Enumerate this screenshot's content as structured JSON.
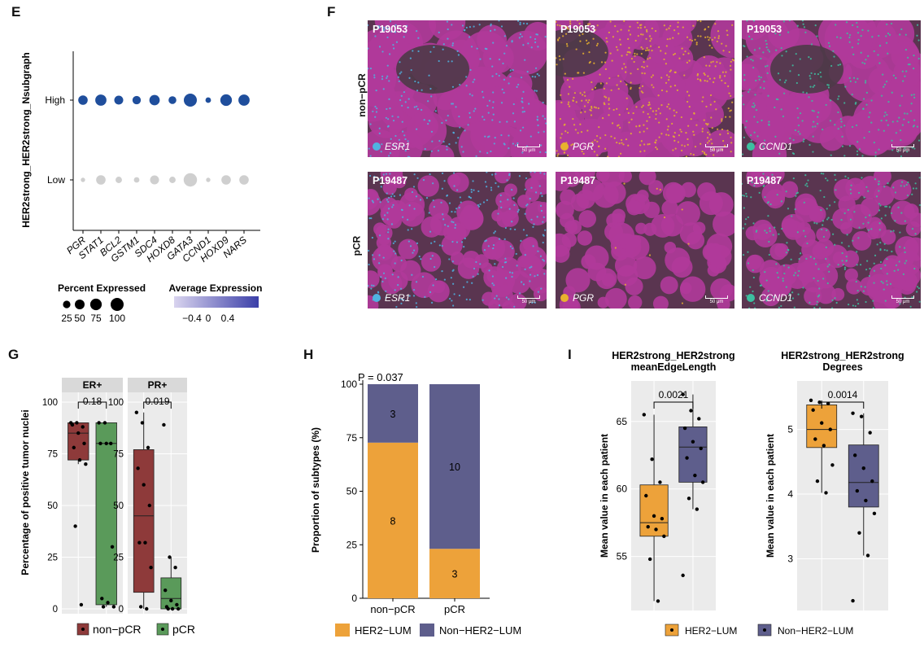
{
  "panels": {
    "E": "E",
    "F": "F",
    "G": "G",
    "H": "H",
    "I": "I"
  },
  "colors": {
    "nonpcr_red": "#8e3a3a",
    "pcr_green": "#5a9a5a",
    "her2lum_orange": "#eda23a",
    "nonher2_purple": "#5e5e8c",
    "dot_blue": "#1f4e9c",
    "dot_grey": "#cfcfcf",
    "esr1": "#4fb3e0",
    "pgr": "#e8b22e",
    "ccnd1": "#3dbfa0",
    "tissue_magenta": "#b03a9a"
  },
  "E": {
    "ylabel": "HER2strong_HER2strong_Nsubgraph",
    "legend_pct_title": "Percent Expressed",
    "legend_avg_title": "Average Expression",
    "legend_pct_labels": [
      "25",
      "50",
      "75",
      "100"
    ],
    "legend_avg_labels": [
      "−0.4",
      "0",
      "0.4"
    ]
  },
  "F": {
    "rows": [
      "non−pCR",
      "pCR"
    ],
    "tiles": [
      {
        "sample": "P19053",
        "gene": "ESR1",
        "scale": "50 μm"
      },
      {
        "sample": "P19053",
        "gene": "PGR",
        "scale": "50 μm"
      },
      {
        "sample": "P19053",
        "gene": "CCND1",
        "scale": "50 μm"
      },
      {
        "sample": "P19487",
        "gene": "ESR1",
        "scale": "50 μm"
      },
      {
        "sample": "P19487",
        "gene": "PGR",
        "scale": "50 μm"
      },
      {
        "sample": "P19487",
        "gene": "CCND1",
        "scale": "50 μm"
      }
    ]
  },
  "chart_data": [
    {
      "id": "E",
      "type": "scatter",
      "title": "",
      "xlabel": "",
      "ylabel": "HER2strong_HER2strong_Nsubgraph",
      "categories": [
        "PGR",
        "STAT1",
        "BCL2",
        "GSTM1",
        "SDC4",
        "HOXD8",
        "GATA3",
        "CCND1",
        "HOXD9",
        "NARS"
      ],
      "groups": [
        "High",
        "Low"
      ],
      "series": [
        {
          "name": "High",
          "percent": [
            8,
            12,
            7,
            6,
            10,
            5,
            17,
            2,
            13,
            12
          ],
          "avg_expression": [
            0.4,
            0.4,
            0.4,
            0.4,
            0.4,
            0.4,
            0.4,
            0.4,
            0.4,
            0.4
          ]
        },
        {
          "name": "Low",
          "percent": [
            1,
            8,
            3,
            2,
            7,
            3,
            18,
            1,
            8,
            8
          ],
          "avg_expression": [
            -0.4,
            -0.4,
            -0.4,
            -0.4,
            -0.4,
            -0.4,
            -0.4,
            -0.4,
            -0.4,
            -0.4
          ]
        }
      ]
    },
    {
      "id": "G",
      "type": "box",
      "ylabel": "Percentage of positive tumor nuclei",
      "ylim": [
        0,
        100
      ],
      "yticks": [
        "0",
        "25",
        "50",
        "75",
        "100"
      ],
      "facets": [
        {
          "strip": "ER+",
          "pvalue": "0.18",
          "groups": [
            {
              "name": "non−pCR",
              "q1": 72,
              "median": 85,
              "q3": 90,
              "min": 70,
              "max": 90,
              "outliers": [
                40,
                2
              ],
              "points": [
                90,
                90,
                88,
                89,
                85,
                80,
                78,
                72,
                70,
                40,
                2
              ]
            },
            {
              "name": "pCR",
              "q1": 2,
              "median": 80,
              "q3": 90,
              "min": 1,
              "max": 90,
              "points": [
                90,
                90,
                80,
                80,
                80,
                30,
                5,
                3,
                1,
                1
              ]
            }
          ]
        },
        {
          "strip": "PR+",
          "pvalue": "0.019",
          "groups": [
            {
              "name": "non−pCR",
              "q1": 8,
              "median": 45,
              "q3": 77,
              "min": 0,
              "max": 95,
              "points": [
                95,
                90,
                78,
                68,
                60,
                50,
                32,
                32,
                20,
                1,
                0
              ]
            },
            {
              "name": "pCR",
              "q1": 0,
              "median": 5,
              "q3": 15,
              "min": 0,
              "max": 25,
              "outliers": [
                89
              ],
              "points": [
                89,
                25,
                20,
                9,
                4,
                2,
                1,
                0,
                0,
                0
              ]
            }
          ]
        }
      ],
      "legend": [
        "non−pCR",
        "pCR"
      ]
    },
    {
      "id": "H",
      "type": "bar",
      "stacked": true,
      "annotation": "P = 0.037",
      "ylabel": "Proportion of  subtypes (%)",
      "ylim": [
        0,
        100
      ],
      "yticks": [
        "0",
        "25",
        "50",
        "75",
        "100"
      ],
      "categories": [
        "non−pCR",
        "pCR"
      ],
      "series": [
        {
          "name": "HER2−LUM",
          "values": [
            72.7,
            23.1
          ],
          "counts": [
            "8",
            "3"
          ]
        },
        {
          "name": "Non−HER2−LUM",
          "values": [
            27.3,
            76.9
          ],
          "counts": [
            "3",
            "10"
          ]
        }
      ]
    },
    {
      "id": "I1",
      "type": "box",
      "title": "HER2strong_HER2strong\nmeanEdgeLength",
      "title_lines": [
        "HER2strong_HER2strong",
        "meanEdgeLength"
      ],
      "ylabel": "Mean value in each patient",
      "ylim": [
        51,
        68
      ],
      "yticks": [
        "55",
        "60",
        "65"
      ],
      "pvalue": "0.0021",
      "groups": [
        {
          "name": "HER2−LUM",
          "q1": 56.5,
          "median": 57.5,
          "q3": 60.3,
          "min": 51.7,
          "max": 65.5,
          "points": [
            65.5,
            62.2,
            60.5,
            59.5,
            58.0,
            57.8,
            57.2,
            57.0,
            56.5,
            54.8,
            51.7
          ]
        },
        {
          "name": "Non−HER2−LUM",
          "q1": 60.5,
          "median": 63.1,
          "q3": 64.6,
          "min": 58.5,
          "max": 67.0,
          "points": [
            67.0,
            65.8,
            65.2,
            64.5,
            63.5,
            63.0,
            62.3,
            61.0,
            60.5,
            59.3,
            58.5,
            53.6
          ]
        }
      ]
    },
    {
      "id": "I2",
      "type": "box",
      "title": "HER2strong_HER2strong\nDegrees",
      "title_lines": [
        "HER2strong_HER2strong",
        "Degrees"
      ],
      "ylabel": "Mean value in each patient",
      "ylim": [
        2.2,
        5.75
      ],
      "yticks": [
        "3",
        "4",
        "5"
      ],
      "pvalue": "0.0014",
      "groups": [
        {
          "name": "HER2−LUM",
          "q1": 4.72,
          "median": 5.0,
          "q3": 5.38,
          "min": 4.02,
          "max": 5.45,
          "points": [
            5.45,
            5.42,
            5.4,
            5.3,
            5.1,
            5.0,
            4.85,
            4.75,
            4.45,
            4.2,
            4.02
          ]
        },
        {
          "name": "Non−HER2−LUM",
          "q1": 3.8,
          "median": 4.18,
          "q3": 4.76,
          "min": 3.05,
          "max": 5.25,
          "points": [
            5.25,
            5.2,
            4.95,
            4.6,
            4.4,
            4.2,
            4.05,
            3.9,
            3.7,
            3.4,
            3.05,
            2.35
          ]
        }
      ],
      "legend": [
        "HER2−LUM",
        "Non−HER2−LUM"
      ]
    }
  ]
}
